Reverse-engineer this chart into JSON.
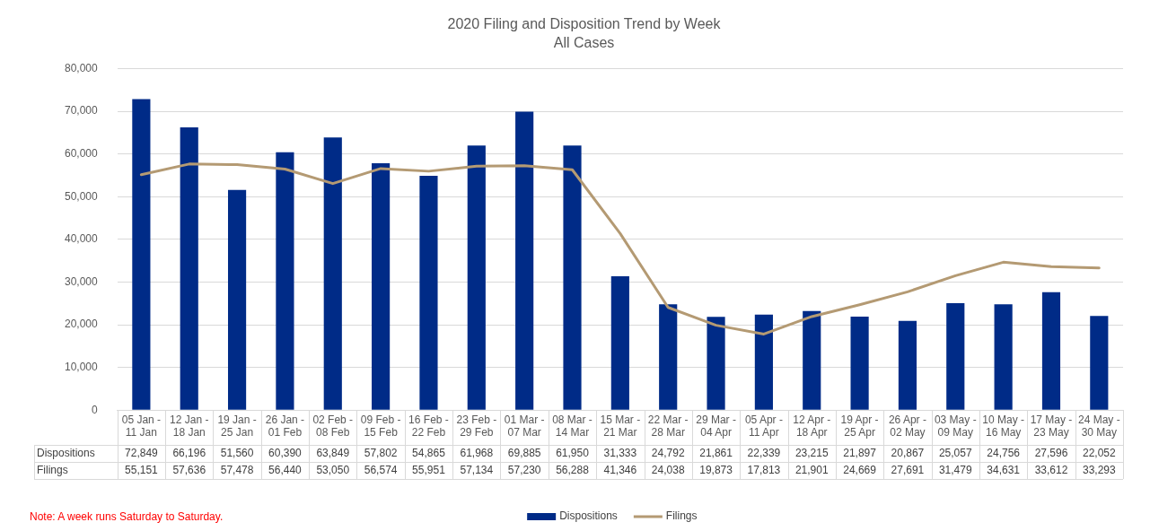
{
  "chart_data": {
    "type": "bar",
    "title": "2020 Filing and Disposition Trend by Week",
    "subtitle": "All Cases",
    "categories": [
      "05 Jan - 11 Jan",
      "12 Jan - 18 Jan",
      "19 Jan - 25 Jan",
      "26 Jan - 01 Feb",
      "02 Feb - 08 Feb",
      "09 Feb - 15 Feb",
      "16 Feb - 22 Feb",
      "23 Feb - 29 Feb",
      "01 Mar - 07 Mar",
      "08 Mar - 14 Mar",
      "15 Mar - 21 Mar",
      "22 Mar - 28 Mar",
      "29 Mar - 04 Apr",
      "05 Apr - 11 Apr",
      "12 Apr - 18 Apr",
      "19 Apr - 25 Apr",
      "26 Apr - 02 May",
      "03 May - 09 May",
      "10 May - 16 May",
      "17 May - 23 May",
      "24 May - 30 May"
    ],
    "series": [
      {
        "name": "Dispositions",
        "color": "#002b87",
        "values": [
          72849,
          66196,
          51560,
          60390,
          63849,
          57802,
          54865,
          61968,
          69885,
          61950,
          31333,
          24792,
          21861,
          22339,
          23215,
          21897,
          20867,
          25057,
          24756,
          27596,
          22052
        ],
        "value_labels": [
          "72,849",
          "66,196",
          "51,560",
          "60,390",
          "63,849",
          "57,802",
          "54,865",
          "61,968",
          "69,885",
          "61,950",
          "31,333",
          "24,792",
          "21,861",
          "22,339",
          "23,215",
          "21,897",
          "20,867",
          "25,057",
          "24,756",
          "27,596",
          "22,052"
        ]
      },
      {
        "name": "Filings",
        "type": "line",
        "color": "#b49a73",
        "values": [
          55151,
          57636,
          57478,
          56440,
          53050,
          56574,
          55951,
          57134,
          57230,
          56288,
          41346,
          24038,
          19873,
          17813,
          21901,
          24669,
          27691,
          31479,
          34631,
          33612,
          33293
        ],
        "value_labels": [
          "55,151",
          "57,636",
          "57,478",
          "56,440",
          "53,050",
          "56,574",
          "55,951",
          "57,134",
          "57,230",
          "56,288",
          "41,346",
          "24,038",
          "19,873",
          "17,813",
          "21,901",
          "24,669",
          "27,691",
          "31,479",
          "34,631",
          "33,612",
          "33,293"
        ]
      }
    ],
    "ylim": [
      0,
      80000
    ],
    "yticks": [
      {
        "value": 0,
        "label": "0"
      },
      {
        "value": 10000,
        "label": "10,000"
      },
      {
        "value": 20000,
        "label": "20,000"
      },
      {
        "value": 30000,
        "label": "30,000"
      },
      {
        "value": 40000,
        "label": "40,000"
      },
      {
        "value": 50000,
        "label": "50,000"
      },
      {
        "value": 60000,
        "label": "60,000"
      },
      {
        "value": 70000,
        "label": "70,000"
      },
      {
        "value": 80000,
        "label": "80,000"
      }
    ],
    "grid": "y",
    "legend": "bottom",
    "marker": "none",
    "line_style": "solid",
    "annotations": [
      "Note: A week runs Saturday to Saturday."
    ]
  }
}
